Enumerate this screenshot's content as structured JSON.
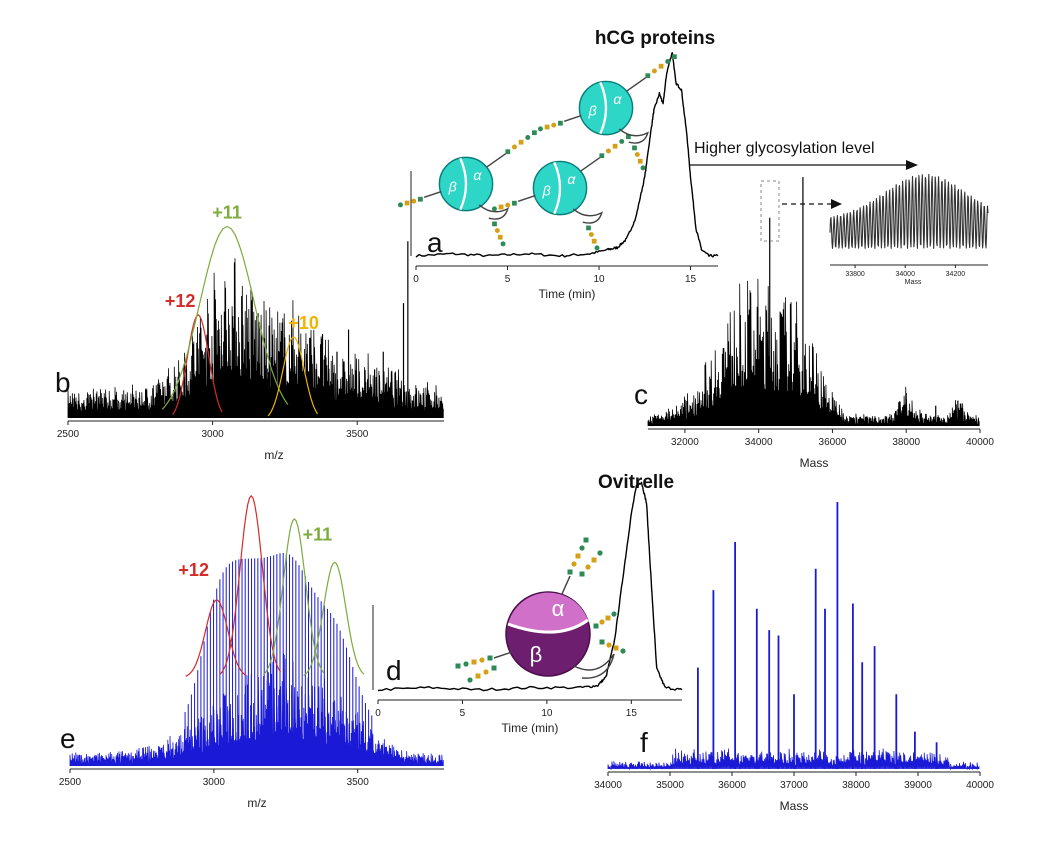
{
  "titles": {
    "hcg": "hCG proteins",
    "ovitrelle": "Ovitrelle"
  },
  "panel_letters": {
    "a": "a",
    "b": "b",
    "c": "c",
    "d": "d",
    "e": "e",
    "f": "f"
  },
  "colors": {
    "black_trace": "#000000",
    "blue_trace": "#1a1ad6",
    "red_label": "#d42b2b",
    "green_label": "#7dab3c",
    "yellow_label": "#f0b400",
    "cyan_globule": "#2ed6c8",
    "purple_beta": "#6e1e6e",
    "pink_alpha": "#d070c8"
  },
  "icons": {
    "hcg_protein": "hcg-glycoprotein-icon",
    "ovitrelle_protein": "ovitrelle-glycoprotein-icon"
  },
  "annotations": {
    "higher_glyco": "Higher glycosylation level",
    "alpha": "α",
    "beta": "β"
  },
  "chart_data": [
    {
      "id": "a",
      "type": "line",
      "xlabel": "Time (min)",
      "xlim": [
        0,
        16.5
      ],
      "xticks": [
        0,
        5,
        10,
        15
      ],
      "x": [
        0,
        2,
        4,
        6,
        8,
        9.5,
        10.5,
        11,
        11.5,
        12,
        12.5,
        12.8,
        13,
        13.3,
        13.5,
        13.7,
        14,
        14.2,
        14.5,
        14.8,
        15,
        15.3,
        15.6,
        16,
        16.5
      ],
      "y": [
        0.02,
        0.03,
        0.02,
        0.03,
        0.02,
        0.03,
        0.05,
        0.06,
        0.1,
        0.2,
        0.4,
        0.6,
        0.72,
        0.8,
        0.75,
        0.9,
        1.0,
        0.85,
        0.82,
        0.6,
        0.4,
        0.15,
        0.05,
        0.02,
        0.02
      ]
    },
    {
      "id": "b",
      "type": "line",
      "xlabel": "m/z",
      "xlim": [
        2500,
        3800
      ],
      "xticks": [
        2500,
        3000,
        3500
      ],
      "charge_states": [
        {
          "label": "+12",
          "center": 2950,
          "height": 0.48,
          "color": "red"
        },
        {
          "label": "+11",
          "center": 3050,
          "height": 0.88,
          "color": "green"
        },
        {
          "label": "+10",
          "center": 3280,
          "height": 0.38,
          "color": "yellow"
        }
      ]
    },
    {
      "id": "c",
      "type": "line",
      "xlabel": "Mass",
      "xlim": [
        31000,
        40000
      ],
      "xticks": [
        32000,
        34000,
        36000,
        38000,
        40000
      ],
      "inset_xticks": [
        33800,
        34000,
        34200
      ],
      "inset_xlabel": "Mass"
    },
    {
      "id": "d",
      "type": "line",
      "xlabel": "Time (min)",
      "xlim": [
        0,
        18
      ],
      "xticks": [
        0,
        5,
        10,
        15
      ],
      "x": [
        0,
        3,
        6,
        9,
        12,
        13,
        13.5,
        14,
        14.5,
        15,
        15.3,
        15.6,
        15.9,
        16.2,
        16.5,
        17,
        18
      ],
      "y": [
        0.02,
        0.03,
        0.02,
        0.03,
        0.03,
        0.04,
        0.08,
        0.25,
        0.55,
        0.85,
        0.98,
        1.0,
        0.9,
        0.5,
        0.12,
        0.03,
        0.02
      ]
    },
    {
      "id": "e",
      "type": "line",
      "xlabel": "m/z",
      "xlim": [
        2500,
        3800
      ],
      "xticks": [
        2500,
        3000,
        3500
      ],
      "charge_states": [
        {
          "label": "+12",
          "center": 3010,
          "height": 0.62,
          "color": "red"
        },
        {
          "label": "+12",
          "center": 3130,
          "height": 0.98,
          "color": "red"
        },
        {
          "label": "+11",
          "center": 3280,
          "height": 0.9,
          "color": "green"
        },
        {
          "label": "+11",
          "center": 3420,
          "height": 0.75,
          "color": "green"
        }
      ]
    },
    {
      "id": "f",
      "type": "line",
      "xlabel": "Mass",
      "xlim": [
        34000,
        40000
      ],
      "xticks": [
        34000,
        35000,
        36000,
        37000,
        38000,
        39000,
        40000
      ],
      "peaks": [
        {
          "x": 35450,
          "y": 0.38
        },
        {
          "x": 35700,
          "y": 0.67
        },
        {
          "x": 36050,
          "y": 0.85
        },
        {
          "x": 36400,
          "y": 0.6
        },
        {
          "x": 36600,
          "y": 0.52
        },
        {
          "x": 36750,
          "y": 0.5
        },
        {
          "x": 37000,
          "y": 0.28
        },
        {
          "x": 37350,
          "y": 0.75
        },
        {
          "x": 37500,
          "y": 0.6
        },
        {
          "x": 37700,
          "y": 1.0
        },
        {
          "x": 37950,
          "y": 0.62
        },
        {
          "x": 38100,
          "y": 0.4
        },
        {
          "x": 38300,
          "y": 0.46
        },
        {
          "x": 38650,
          "y": 0.28
        },
        {
          "x": 38950,
          "y": 0.14
        },
        {
          "x": 39300,
          "y": 0.1
        }
      ]
    }
  ]
}
